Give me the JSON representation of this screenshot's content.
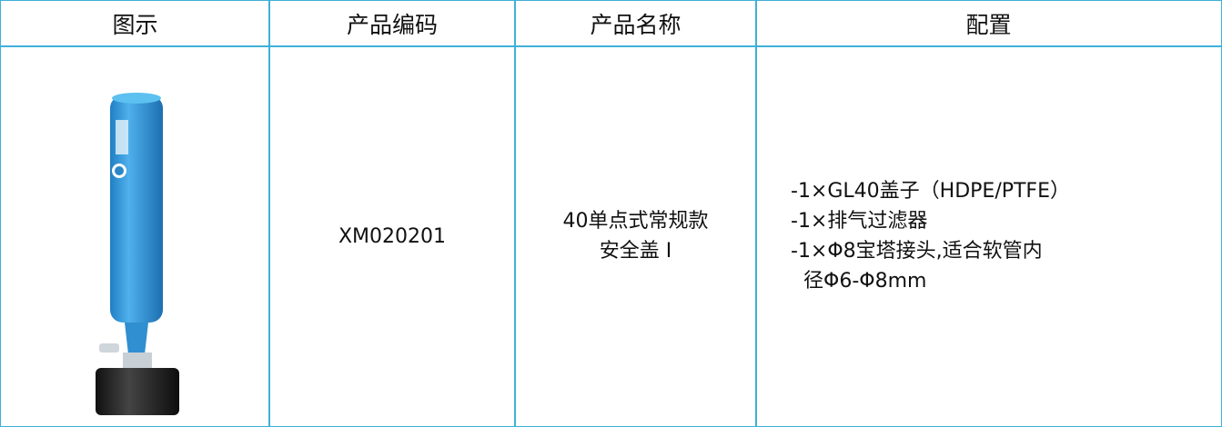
{
  "table": {
    "header": [
      "图示",
      "产品编码",
      "产品名称",
      "配置"
    ],
    "rows": [
      {
        "code": "XM020201",
        "name": [
          "40单点式常规款",
          "安全盖 Ⅰ"
        ],
        "config": [
          "-1×GL40盖子（HDPE/PTFE）",
          "-1×排气过滤器",
          "-1×Φ8宝塔接头,适合软管内",
          "径Φ6-Φ8mm"
        ]
      }
    ]
  }
}
